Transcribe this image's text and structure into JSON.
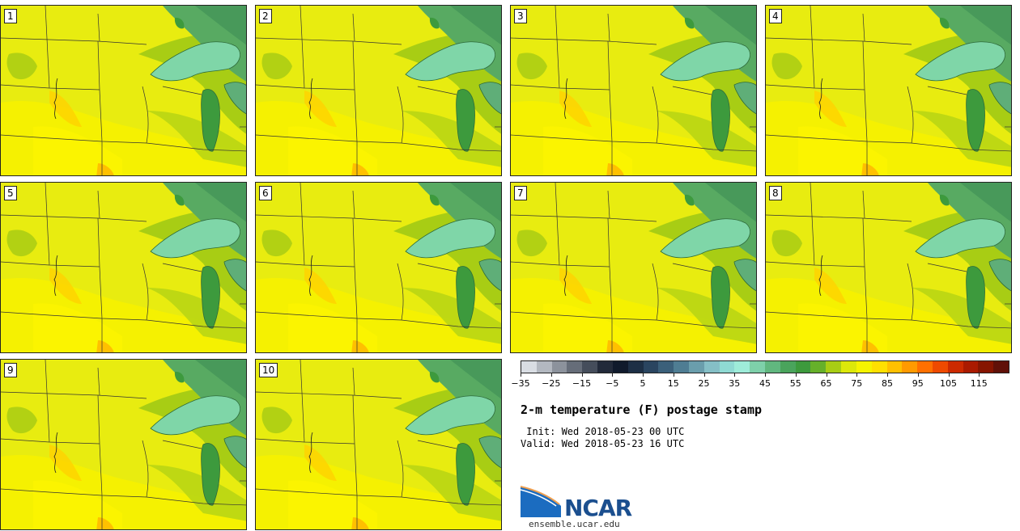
{
  "panels": [
    {
      "label": "1"
    },
    {
      "label": "2"
    },
    {
      "label": "3"
    },
    {
      "label": "4"
    },
    {
      "label": "5"
    },
    {
      "label": "6"
    },
    {
      "label": "7"
    },
    {
      "label": "8"
    },
    {
      "label": "9"
    },
    {
      "label": "10"
    }
  ],
  "colorbar": {
    "ticks": [
      "−35",
      "−25",
      "−15",
      "−5",
      "5",
      "15",
      "25",
      "35",
      "45",
      "55",
      "65",
      "75",
      "85",
      "95",
      "105",
      "115"
    ],
    "colors": [
      "#d9dde3",
      "#b3b8c0",
      "#8c929c",
      "#666d79",
      "#454d5b",
      "#222a3a",
      "#101a2c",
      "#1d2f45",
      "#2a4560",
      "#3b607a",
      "#4f7d93",
      "#6a9eac",
      "#85bfc6",
      "#8fdad3",
      "#9eecd9",
      "#7ed0aa",
      "#61b77f",
      "#4aa45c",
      "#3d9a3d",
      "#66b02a",
      "#a8cd14",
      "#dce80a",
      "#f6f400",
      "#ffe000",
      "#ffc000",
      "#ff9a00",
      "#ff7000",
      "#ee4a00",
      "#cc2a00",
      "#aa1a00",
      "#861500",
      "#601108"
    ]
  },
  "title": "2-m temperature (F) postage stamp",
  "init_line": " Init: Wed 2018-05-23 00 UTC",
  "valid_line": "Valid: Wed 2018-05-23 16 UTC",
  "logo": {
    "name": "NCAR",
    "url": "ensemble.ucar.edu"
  },
  "colors": {
    "land_base": "#e8ec10",
    "warm": "#f8f400",
    "hot": "#ffd200",
    "cool": "#a8cd14",
    "lake": "#7fd6a8",
    "lake_dark": "#3d9a3d",
    "north_green": "#58aa62"
  }
}
